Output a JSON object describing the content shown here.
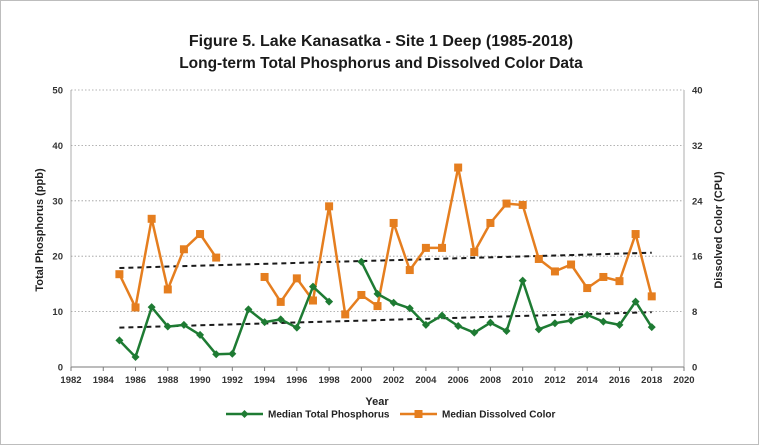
{
  "chart_data": {
    "type": "line",
    "title": "Figure 5. Lake Kanasatka - Site 1 Deep (1985-2018)",
    "subtitle": "Long-term Total Phosphorus and Dissolved Color Data",
    "xlabel": "Year",
    "ylabel": "Total Phosphorus (ppb)",
    "y2label": "Dissolved Color (CPU)",
    "xlim": [
      1982,
      2020
    ],
    "ylim": [
      0,
      50
    ],
    "y2lim": [
      0,
      40
    ],
    "x_ticks": [
      1982,
      1984,
      1986,
      1988,
      1990,
      1992,
      1994,
      1996,
      1998,
      2000,
      2002,
      2004,
      2006,
      2008,
      2010,
      2012,
      2014,
      2016,
      2018,
      2020
    ],
    "y_ticks": [
      0,
      10,
      20,
      30,
      40,
      50
    ],
    "y2_ticks": [
      0,
      8,
      16,
      24,
      32,
      40
    ],
    "grid": "horizontal dotted",
    "legend_position": "bottom",
    "series": [
      {
        "name": "Median Total Phosphorus",
        "axis": "left",
        "color": "#1e7b33",
        "marker": "diamond",
        "segments": [
          {
            "x": [
              1985,
              1986,
              1987,
              1988,
              1989,
              1990,
              1991,
              1992,
              1993,
              1994,
              1995,
              1996,
              1997,
              1998
            ],
            "y": [
              4.8,
              1.8,
              10.8,
              7.3,
              7.6,
              5.8,
              2.3,
              2.4,
              10.4,
              8.1,
              8.6,
              7.1,
              14.5,
              11.8
            ]
          },
          {
            "x": [
              2000,
              2001,
              2002,
              2003,
              2004,
              2005,
              2006,
              2007,
              2008,
              2009,
              2010,
              2011,
              2012,
              2013,
              2014,
              2015,
              2016,
              2017,
              2018
            ],
            "y": [
              19.0,
              13.2,
              11.6,
              10.6,
              7.6,
              9.3,
              7.4,
              6.2,
              8.0,
              6.5,
              15.6,
              6.8,
              7.9,
              8.4,
              9.4,
              8.2,
              7.6,
              11.8,
              7.2
            ]
          }
        ]
      },
      {
        "name": "Median Dissolved Color",
        "axis": "right",
        "color": "#e57e1f",
        "marker": "square",
        "segments": [
          {
            "x": [
              1985,
              1986,
              1987,
              1988,
              1989,
              1990,
              1991
            ],
            "y": [
              13.4,
              8.6,
              21.4,
              11.2,
              17.0,
              19.2,
              15.8
            ]
          },
          {
            "x": [
              1994,
              1995,
              1996,
              1997,
              1998,
              1999,
              2000,
              2001,
              2002,
              2003,
              2004,
              2005,
              2006,
              2007,
              2008,
              2009,
              2010,
              2011,
              2012,
              2013,
              2014,
              2015,
              2016,
              2017,
              2018
            ],
            "y": [
              13.0,
              9.4,
              12.8,
              9.6,
              23.2,
              7.6,
              10.4,
              8.8,
              20.8,
              14.0,
              17.2,
              17.2,
              28.8,
              16.6,
              20.8,
              23.6,
              23.4,
              15.6,
              13.8,
              14.8,
              11.4,
              13.0,
              12.4,
              19.2,
              10.2
            ]
          }
        ]
      }
    ],
    "trendlines": [
      {
        "for": "Median Dissolved Color",
        "axis": "right",
        "x": [
          1985,
          2018
        ],
        "y": [
          14.3,
          16.5
        ],
        "color": "#1a1a1a",
        "style": "dashed"
      },
      {
        "for": "Median Total Phosphorus",
        "axis": "left",
        "x": [
          1985,
          2018
        ],
        "y": [
          7.1,
          9.9
        ],
        "color": "#1a1a1a",
        "style": "dashed"
      }
    ]
  }
}
